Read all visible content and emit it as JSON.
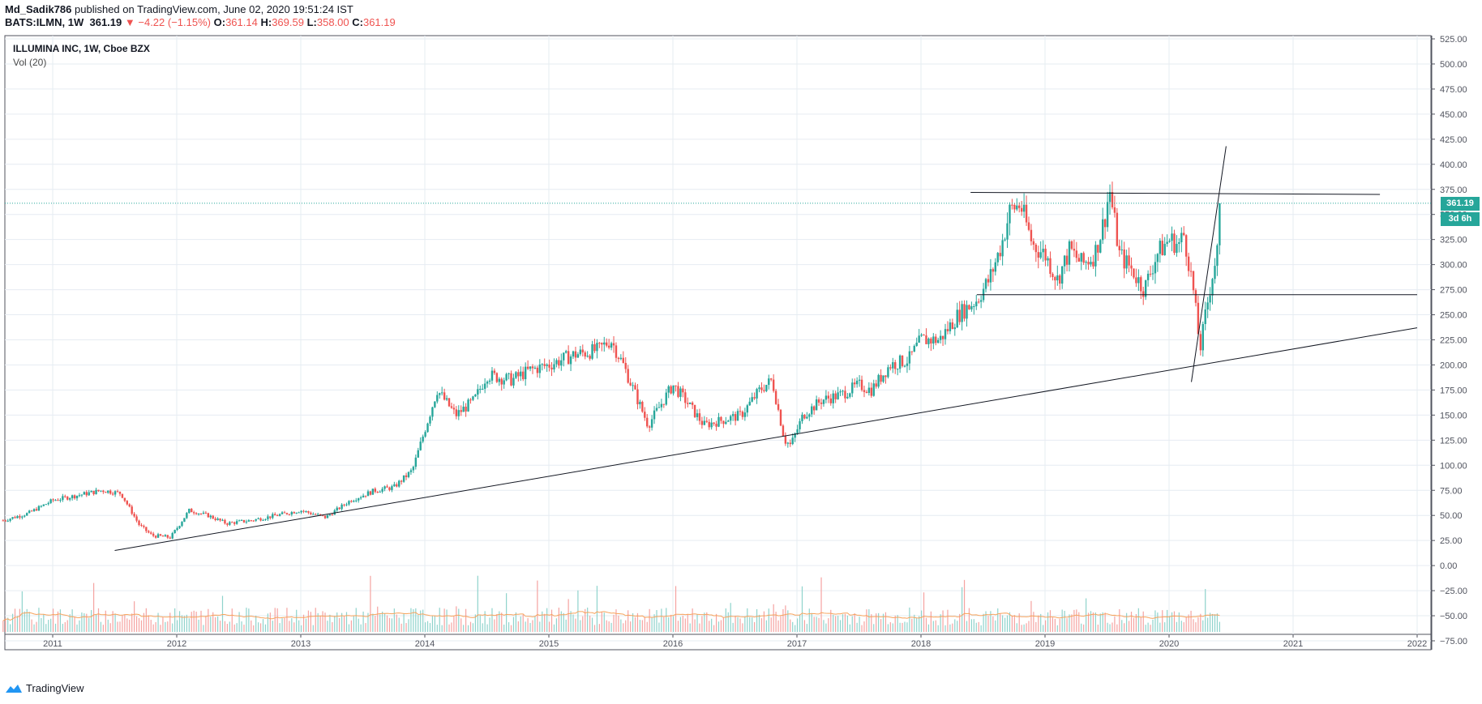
{
  "header": {
    "author": "Md_Sadik786",
    "published_text": "published on TradingView.com, June 02, 2020 19:51:24 IST",
    "symbol_line": "BATS:ILMN, 1W",
    "last_price": "361.19",
    "change_arrow": "▼",
    "change": "−4.22 (−1.15%)",
    "open_label": "O:",
    "open": "361.14",
    "high_label": "H:",
    "high": "369.59",
    "low_label": "L:",
    "low": "358.00",
    "close_label": "C:",
    "close": "361.19"
  },
  "legend": {
    "title": "ILLUMINA INC, 1W, Cboe BZX",
    "volume_label": "Vol (20)"
  },
  "badges": {
    "price": "361.19",
    "countdown": "3d 6h"
  },
  "footer": {
    "brand": "TradingView"
  },
  "colors": {
    "up": "#26a69a",
    "down": "#ef5350",
    "vol_up": "#8fd3cc",
    "vol_down": "#f5a3a1",
    "vol_ma": "#f7a35c",
    "grid": "#e6ecf2",
    "trendline": "#131722",
    "price_line": "#26a69a"
  },
  "chart_data": {
    "type": "line",
    "title": "ILLUMINA INC, 1W, Cboe BZX",
    "y_axis_labels": [
      "525.00",
      "500.00",
      "475.00",
      "450.00",
      "425.00",
      "400.00",
      "375.00",
      "350.00",
      "325.00",
      "300.00",
      "275.00",
      "250.00",
      "225.00",
      "200.00",
      "175.00",
      "150.00",
      "125.00",
      "100.00",
      "75.00",
      "50.00",
      "25.00",
      "0.00",
      "−25.00",
      "−50.00",
      "−75.00"
    ],
    "ylim": [
      -85,
      530
    ],
    "x_axis_labels": [
      "2011",
      "2012",
      "2013",
      "2014",
      "2015",
      "2016",
      "2017",
      "2018",
      "2019",
      "2020",
      "2021",
      "2022"
    ],
    "xlim": [
      2010.6,
      2022.1
    ],
    "grid": true,
    "series": [
      {
        "x": [
          2010.6,
          2010.8,
          2011.0,
          2011.2,
          2011.4,
          2011.55,
          2011.7,
          2011.8,
          2011.95,
          2012.1,
          2012.25,
          2012.4,
          2012.6,
          2012.8,
          2013.0,
          2013.2,
          2013.4,
          2013.6,
          2013.75,
          2013.9,
          2014.0,
          2014.1,
          2014.25,
          2014.4,
          2014.5,
          2014.7,
          2014.85,
          2015.0,
          2015.2,
          2015.4,
          2015.5,
          2015.6,
          2015.7,
          2015.8,
          2015.9,
          2016.0,
          2016.1,
          2016.25,
          2016.4,
          2016.55,
          2016.7,
          2016.8,
          2016.9,
          2016.95,
          2017.05,
          2017.2,
          2017.35,
          2017.5,
          2017.6,
          2017.75,
          2017.9,
          2018.0,
          2018.15,
          2018.3,
          2018.45,
          2018.55,
          2018.65,
          2018.72,
          2018.8,
          2018.9,
          2019.0,
          2019.1,
          2019.2,
          2019.3,
          2019.4,
          2019.48,
          2019.52,
          2019.6,
          2019.7,
          2019.8,
          2019.9,
          2020.0,
          2020.08,
          2020.12,
          2020.17,
          2020.2,
          2020.25,
          2020.3,
          2020.35,
          2020.4,
          2020.42
        ],
        "values": [
          45,
          52,
          65,
          70,
          75,
          72,
          40,
          30,
          28,
          55,
          50,
          42,
          45,
          50,
          55,
          48,
          65,
          75,
          78,
          95,
          135,
          175,
          150,
          165,
          190,
          185,
          195,
          200,
          210,
          215,
          225,
          200,
          170,
          140,
          160,
          180,
          165,
          140,
          145,
          150,
          175,
          185,
          125,
          120,
          150,
          165,
          170,
          180,
          175,
          200,
          205,
          225,
          225,
          250,
          265,
          285,
          320,
          355,
          360,
          320,
          310,
          285,
          315,
          300,
          310,
          345,
          375,
          310,
          295,
          275,
          310,
          325,
          320,
          330,
          295,
          270,
          215,
          255,
          290,
          320,
          361.19
        ]
      }
    ],
    "annotations": {
      "last_price": 361.19,
      "resistance_level": 370,
      "support_level": 270
    }
  }
}
